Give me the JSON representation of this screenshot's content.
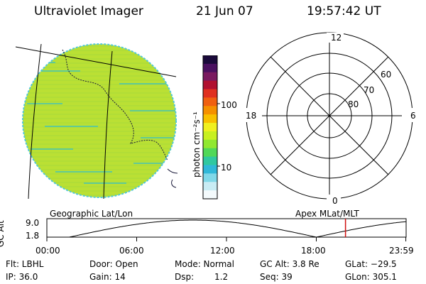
{
  "header": {
    "title": "Ultraviolet Imager",
    "date": "21 Jun 07",
    "time": "19:57:42 UT"
  },
  "colorbar": {
    "label": "photon cm⁻²s⁻¹",
    "ticks": [
      "100",
      "10"
    ],
    "colors": [
      "#1a0a3a",
      "#4a1060",
      "#7a1a60",
      "#b01030",
      "#e03020",
      "#f06010",
      "#f59000",
      "#f8c000",
      "#f0f020",
      "#c8f020",
      "#90e830",
      "#50d858",
      "#30c8a0",
      "#30b8d8",
      "#80d8e8",
      "#c8ecf4",
      "#f4fafc"
    ]
  },
  "polar": {
    "mlt_labels": [
      "12",
      "18",
      "6",
      "0"
    ],
    "lat_labels": [
      "60",
      "70",
      "80"
    ]
  },
  "timeline": {
    "left_label": "Geographic Lat/Lon",
    "right_label": "Apex MLat/MLT",
    "axis_title": "GC Alt",
    "y_ticks": [
      "9.0",
      "1.8"
    ],
    "x_ticks": [
      "00:00",
      "06:00",
      "12:00",
      "18:00",
      "23:59"
    ],
    "marker_time": "19:57",
    "marker_color": "#d01010"
  },
  "footer": {
    "row1": [
      "Flt: LBHL",
      "Door: Open",
      "Mode: Normal",
      "GC Alt: 3.8 Re",
      "GLat: −29.5"
    ],
    "row2": [
      "IP: 36.0",
      "Gain: 14",
      "Dsp:",
      "1.2",
      "Seq: 39",
      "GLon: 305.1"
    ]
  }
}
